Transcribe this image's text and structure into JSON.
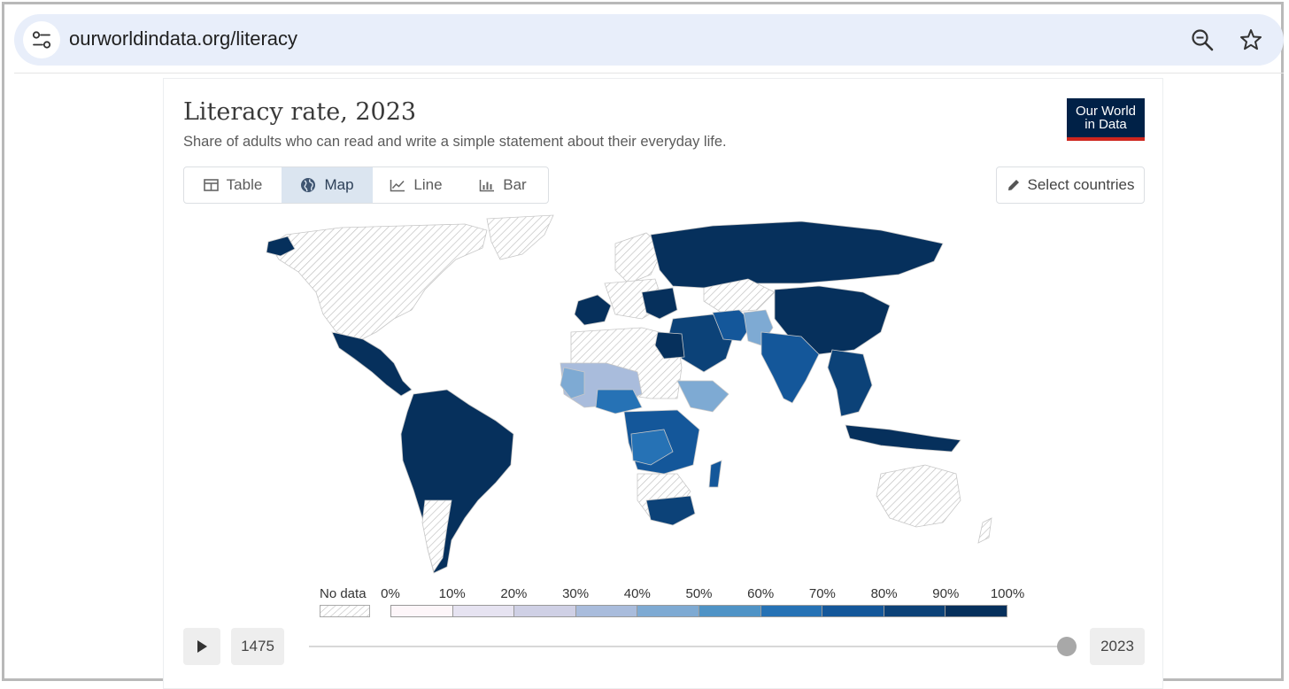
{
  "browser": {
    "url": "ourworldindata.org/literacy",
    "icons": [
      "site-settings-icon",
      "zoom-icon",
      "bookmark-star-icon"
    ]
  },
  "chart": {
    "title": "Literacy rate, 2023",
    "subtitle": "Share of adults who can read and write a simple statement about their everyday life.",
    "logo_line1": "Our World",
    "logo_line2": "in Data",
    "logo_color": "#002147",
    "logo_accent": "#ce261e"
  },
  "tabs": [
    {
      "label": "Table",
      "icon": "table-icon",
      "active": false
    },
    {
      "label": "Map",
      "icon": "globe-icon",
      "active": true
    },
    {
      "label": "Line",
      "icon": "line-chart-icon",
      "active": false
    },
    {
      "label": "Bar",
      "icon": "bar-chart-icon",
      "active": false
    }
  ],
  "select_countries": {
    "label": "Select countries",
    "icon": "pencil-icon"
  },
  "legend": {
    "no_data_label": "No data",
    "ticks": [
      "0%",
      "10%",
      "20%",
      "30%",
      "40%",
      "50%",
      "60%",
      "70%",
      "80%",
      "90%",
      "100%"
    ],
    "colors": [
      "#fdf6f9",
      "#e6e3f1",
      "#cfd0e5",
      "#a9bcdc",
      "#7eaad3",
      "#4f93c6",
      "#2672b5",
      "#14579a",
      "#0c4278",
      "#06305c"
    ]
  },
  "timeline": {
    "start_year": "1475",
    "end_year": "2023",
    "position": 1.0,
    "play_icon": "play-icon"
  }
}
